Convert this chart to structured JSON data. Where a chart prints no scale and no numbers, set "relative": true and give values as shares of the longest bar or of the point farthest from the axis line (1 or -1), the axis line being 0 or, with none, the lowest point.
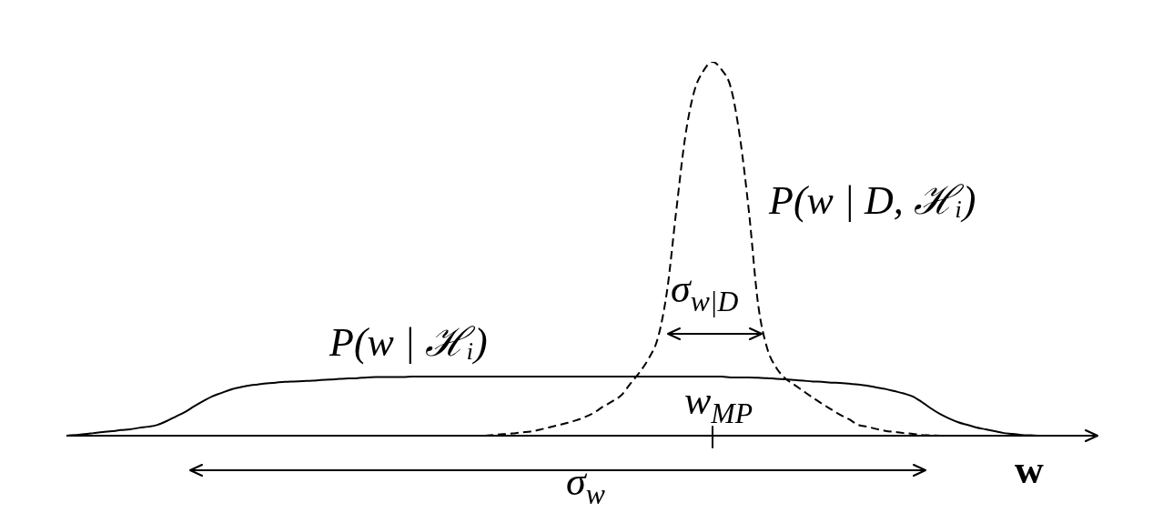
{
  "chart_data": {
    "type": "line",
    "relative": true,
    "marker": "none",
    "xlabel": "w",
    "categories": [
      null,
      null,
      null,
      null,
      null,
      null,
      null,
      null,
      null,
      null,
      null,
      null,
      null,
      null,
      null,
      null,
      null,
      null,
      null,
      null,
      null,
      null,
      null,
      null,
      null,
      null,
      null,
      null,
      null,
      null,
      null,
      null,
      null,
      null,
      null,
      null,
      null,
      null,
      null,
      null,
      null,
      null,
      null,
      null,
      null,
      null,
      null,
      null,
      null,
      null,
      null,
      null,
      null,
      null,
      null,
      null,
      null,
      null,
      null,
      null,
      null,
      null,
      null,
      null,
      null,
      null,
      null,
      null,
      null,
      null,
      null,
      null,
      null,
      null,
      null,
      null,
      null,
      null,
      null,
      null,
      null,
      null,
      null,
      null,
      null,
      null,
      null,
      null,
      null,
      null,
      null,
      null,
      null,
      null,
      null,
      null,
      null,
      null,
      null,
      null,
      null,
      null,
      null,
      null,
      null,
      null,
      null,
      null,
      null,
      null,
      null,
      null,
      null,
      null
    ],
    "series": [
      {
        "name": "P(w | ℋᵢ)",
        "color": "#000000",
        "line_style": "solid",
        "values": [
          0,
          0.002,
          0.004,
          0.007,
          0.01,
          0.012,
          0.015,
          0.017,
          0.021,
          0.024,
          0.029,
          0.039,
          0.051,
          0.063,
          0.078,
          0.092,
          0.105,
          0.114,
          0.123,
          0.129,
          0.134,
          0.137,
          0.14,
          0.142,
          0.144,
          0.145,
          0.146,
          0.147,
          0.149,
          0.15,
          0.152,
          0.153,
          0.154,
          0.156,
          0.157,
          0.157,
          0.157,
          0.157,
          0.158,
          0.158,
          0.158,
          0.158,
          0.158,
          0.158,
          0.158,
          0.158,
          0.158,
          0.158,
          0.158,
          0.158,
          0.158,
          0.158,
          0.158,
          0.158,
          0.158,
          0.158,
          0.158,
          0.158,
          0.158,
          0.158,
          0.158,
          0.158,
          0.158,
          0.158,
          0.158,
          0.158,
          0.158,
          0.158,
          0.158,
          0.158,
          0.158,
          0.158,
          0.158,
          0.156,
          0.156,
          0.156,
          0.155,
          0.154,
          0.152,
          0.151,
          0.149,
          0.147,
          0.145,
          0.144,
          0.142,
          0.141,
          0.139,
          0.137,
          0.134,
          0.129,
          0.125,
          0.119,
          0.113,
          0.105,
          0.09,
          0.073,
          0.058,
          0.046,
          0.036,
          0.029,
          0.022,
          0.017,
          0.012,
          0.007,
          0.005,
          0.002,
          0.001,
          0,
          0,
          null,
          null,
          null,
          null,
          null
        ]
      },
      {
        "name": "P(w | D, ℋᵢ)",
        "color": "#000000",
        "line_style": "dashed",
        "values": [
          null,
          null,
          null,
          null,
          null,
          null,
          null,
          null,
          null,
          null,
          null,
          null,
          null,
          null,
          null,
          null,
          null,
          null,
          null,
          null,
          null,
          null,
          null,
          null,
          null,
          null,
          null,
          null,
          null,
          null,
          null,
          null,
          null,
          null,
          null,
          null,
          null,
          null,
          null,
          null,
          null,
          null,
          null,
          null,
          null,
          null,
          0,
          0.002,
          0.004,
          0.006,
          0.009,
          0.011,
          0.016,
          0.022,
          0.028,
          0.034,
          0.041,
          0.05,
          0.062,
          0.078,
          0.092,
          0.109,
          0.14,
          0.17,
          0.207,
          0.262,
          0.387,
          0.599,
          0.8,
          0.922,
          0.976,
          1,
          0.979,
          0.932,
          0.8,
          0.599,
          0.353,
          0.234,
          0.182,
          0.153,
          0.136,
          0.119,
          0.102,
          0.086,
          0.071,
          0.056,
          0.044,
          0.029,
          0.024,
          0.018,
          0.013,
          0.01,
          0.007,
          0.005,
          0.002,
          0.001,
          0,
          null,
          null,
          null,
          null,
          null,
          null,
          null,
          null,
          null,
          null,
          null,
          null,
          null,
          null,
          null,
          null,
          null
        ]
      }
    ],
    "annotations": [
      "σ$_{w|D}$",
      "w$_{MP}$",
      "σ$_{w}$"
    ]
  }
}
